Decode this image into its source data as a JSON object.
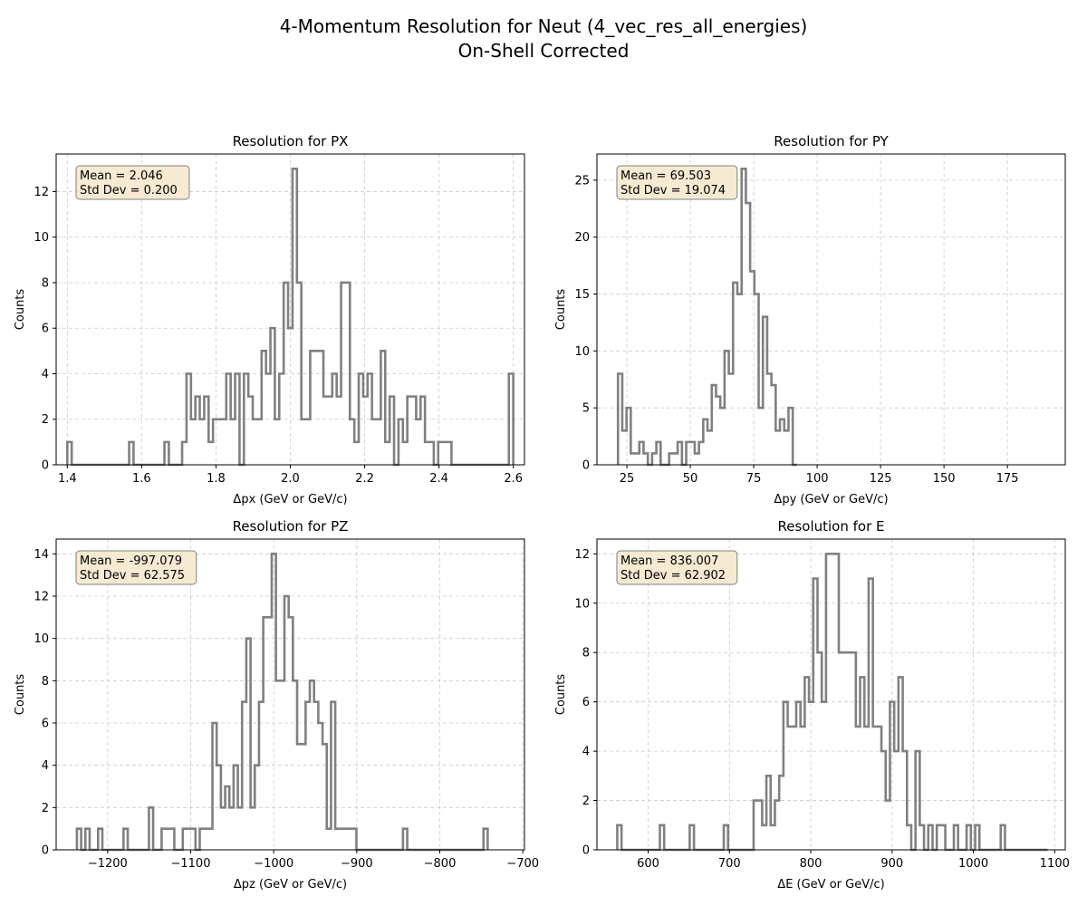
{
  "suptitle": {
    "line1": "4-Momentum Resolution for Neut (4_vec_res_all_energies)",
    "line2": "On-Shell Corrected"
  },
  "colors": {
    "histogram": "#808080",
    "grid": "#cccccc",
    "stats_box_fill": "#f7ead2",
    "stats_box_edge": "#808080"
  },
  "chart_data": [
    {
      "type": "histogram",
      "id": "px",
      "title": "Resolution for PX",
      "xlabel": "Δpx (GeV or GeV/c)",
      "ylabel": "Counts",
      "xlim": [
        1.37,
        2.63
      ],
      "ylim": [
        0,
        13.65
      ],
      "xticks": [
        1.4,
        1.6,
        1.8,
        2.0,
        2.2,
        2.4,
        2.6
      ],
      "xtick_labels": [
        "1.4",
        "1.6",
        "1.8",
        "2.0",
        "2.2",
        "2.4",
        "2.6"
      ],
      "yticks": [
        0,
        2,
        4,
        6,
        8,
        10,
        12
      ],
      "grid": true,
      "stats": {
        "mean": "Mean = 2.046",
        "std": "Std Dev = 0.200"
      },
      "bin_start": 1.4,
      "bin_width": 0.01188,
      "counts": [
        1,
        0,
        0,
        0,
        0,
        0,
        0,
        0,
        0,
        0,
        0,
        0,
        0,
        0,
        1,
        0,
        0,
        0,
        0,
        0,
        0,
        0,
        1,
        0,
        0,
        0,
        1,
        4,
        2,
        3,
        2,
        3,
        1,
        2,
        2,
        2,
        4,
        2,
        4,
        0,
        4,
        3,
        2,
        2,
        5,
        4,
        6,
        2,
        4,
        8,
        6,
        13,
        8,
        2,
        2,
        5,
        5,
        5,
        3,
        3,
        4,
        3,
        8,
        8,
        2,
        1,
        4,
        3,
        4,
        2,
        2,
        5,
        1,
        3,
        0,
        2,
        1,
        3,
        3,
        2,
        3,
        1,
        1,
        0,
        1,
        1,
        1,
        0,
        0,
        0,
        0,
        0,
        0,
        0,
        0,
        0,
        0,
        0,
        0,
        0,
        4
      ]
    },
    {
      "type": "histogram",
      "id": "py",
      "title": "Resolution for PY",
      "xlabel": "Δpy (GeV or GeV/c)",
      "ylabel": "Counts",
      "xlim": [
        13.2,
        197.8
      ],
      "ylim": [
        0,
        27.3
      ],
      "xticks": [
        25,
        50,
        75,
        100,
        125,
        150,
        175
      ],
      "xtick_labels": [
        "25",
        "50",
        "75",
        "100",
        "125",
        "150",
        "175"
      ],
      "yticks": [
        0,
        5,
        10,
        15,
        20,
        25
      ],
      "grid": true,
      "stats": {
        "mean": "Mean = 69.503",
        "std": "Std Dev = 19.074"
      },
      "bin_start": 21.5,
      "bin_width": 1.68,
      "counts": [
        8,
        3,
        5,
        1,
        1,
        2,
        1,
        0,
        1,
        2,
        0,
        0,
        1,
        1,
        2,
        0,
        2,
        2,
        1,
        2,
        4,
        3,
        7,
        6,
        5,
        10,
        8,
        16,
        15,
        26,
        23,
        17,
        15,
        5,
        13,
        8,
        7,
        3,
        4,
        3,
        5,
        0
      ]
    },
    {
      "type": "histogram",
      "id": "pz",
      "title": "Resolution for PZ",
      "xlabel": "Δpz (GeV or GeV/c)",
      "ylabel": "Counts",
      "xlim": [
        -1262,
        -698
      ],
      "ylim": [
        0,
        14.7
      ],
      "xticks": [
        -1200,
        -1100,
        -1000,
        -900,
        -800,
        -700
      ],
      "xtick_labels": [
        "−1200",
        "−1100",
        "−1000",
        "−900",
        "−800",
        "−700"
      ],
      "yticks": [
        0,
        2,
        4,
        6,
        8,
        10,
        12,
        14
      ],
      "grid": true,
      "stats": {
        "mean": "Mean = -997.079",
        "std": "Std Dev = 62.575"
      },
      "bin_start": -1237,
      "bin_width": 5.1,
      "counts": [
        1,
        0,
        1,
        0,
        0,
        1,
        0,
        0,
        0,
        0,
        0,
        1,
        0,
        0,
        0,
        0,
        0,
        2,
        0,
        0,
        1,
        1,
        1,
        0,
        0,
        1,
        1,
        1,
        0,
        1,
        1,
        1,
        6,
        4,
        2,
        3,
        2,
        4,
        2,
        7,
        10,
        2,
        4,
        7,
        11,
        11,
        14,
        8,
        8,
        12,
        11,
        8,
        5,
        5,
        7,
        8,
        7,
        6,
        5,
        1,
        7,
        1,
        1,
        1,
        1,
        1,
        0,
        0,
        0,
        0,
        0,
        0,
        0,
        0,
        0,
        0,
        0,
        1,
        0,
        0,
        0,
        0,
        0,
        0,
        0,
        0,
        0,
        0,
        0,
        0,
        0,
        0,
        0,
        0,
        0,
        0,
        1
      ]
    },
    {
      "type": "histogram",
      "id": "e",
      "title": "Resolution for E",
      "xlabel": "ΔE (GeV or GeV/c)",
      "ylabel": "Counts",
      "xlim": [
        537,
        1113
      ],
      "ylim": [
        0,
        12.6
      ],
      "xticks": [
        600,
        700,
        800,
        900,
        1000,
        1100
      ],
      "xtick_labels": [
        "600",
        "700",
        "800",
        "900",
        "1000",
        "1100"
      ],
      "yticks": [
        0,
        2,
        4,
        6,
        8,
        10,
        12
      ],
      "grid": true,
      "stats": {
        "mean": "Mean = 836.007",
        "std": "Std Dev = 62.902"
      },
      "bin_start": 562,
      "bin_width": 5.24,
      "counts": [
        1,
        0,
        0,
        0,
        0,
        0,
        0,
        0,
        0,
        0,
        1,
        0,
        0,
        0,
        0,
        0,
        0,
        1,
        0,
        0,
        0,
        0,
        0,
        0,
        0,
        1,
        0,
        0,
        0,
        0,
        0,
        0,
        2,
        2,
        1,
        3,
        1,
        2,
        3,
        6,
        5,
        5,
        6,
        5,
        7,
        6,
        11,
        8,
        6,
        12,
        12,
        12,
        8,
        8,
        8,
        8,
        5,
        7,
        5,
        11,
        5,
        5,
        4,
        2,
        6,
        4,
        7,
        4,
        1,
        0,
        4,
        1,
        0,
        1,
        0,
        1,
        1,
        0,
        0,
        1,
        0,
        0,
        1,
        0,
        1,
        0,
        0,
        0,
        0,
        0,
        1,
        0,
        0,
        0,
        0,
        0,
        0,
        0,
        0,
        0,
        0
      ]
    }
  ]
}
